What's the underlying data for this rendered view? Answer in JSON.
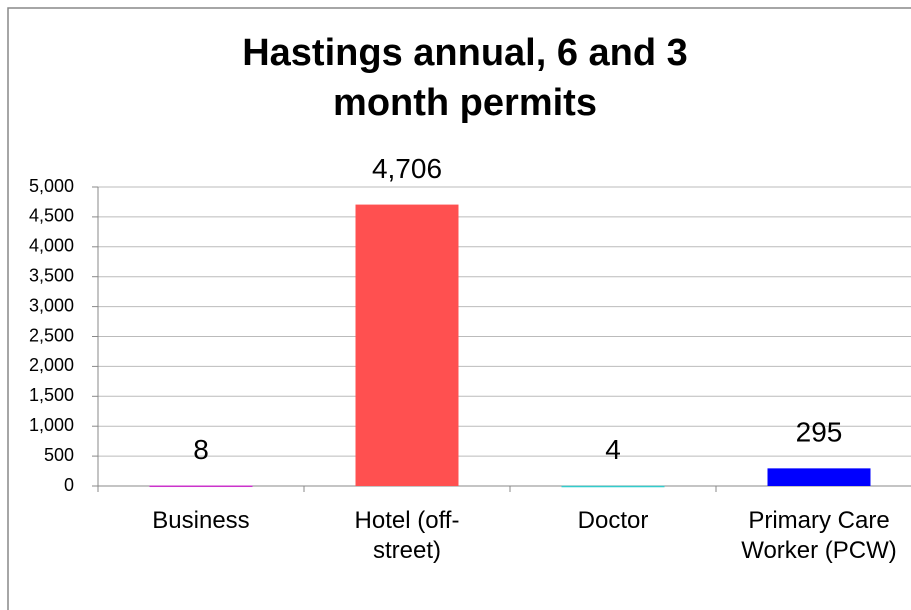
{
  "chart_data": {
    "type": "bar",
    "title": "Hastings annual, 6 and 3 month permits",
    "categories": [
      "Business",
      "Hotel (off-street)",
      "Doctor",
      "Primary Care Worker (PCW)"
    ],
    "values": [
      8,
      4706,
      4,
      295
    ],
    "value_labels": [
      "8",
      "4,706",
      "4",
      "295"
    ],
    "colors": [
      "#cc33cc",
      "#ff5050",
      "#33cccc",
      "#0000ff"
    ],
    "ylim": [
      0,
      5000
    ],
    "yticks": [
      0,
      500,
      {
        "value": 1000,
        "label": "1,000"
      },
      {
        "value": 1500,
        "label": "1,500"
      },
      {
        "value": 2000,
        "label": "2,000"
      },
      {
        "value": 2500,
        "label": "2,500"
      },
      {
        "value": 3000,
        "label": "3,000"
      },
      {
        "value": 3500,
        "label": "3,500"
      },
      {
        "value": 4000,
        "label": "4,000"
      },
      {
        "value": 4500,
        "label": "4,500"
      },
      {
        "value": 5000,
        "label": "5,000"
      }
    ],
    "grid": true
  }
}
